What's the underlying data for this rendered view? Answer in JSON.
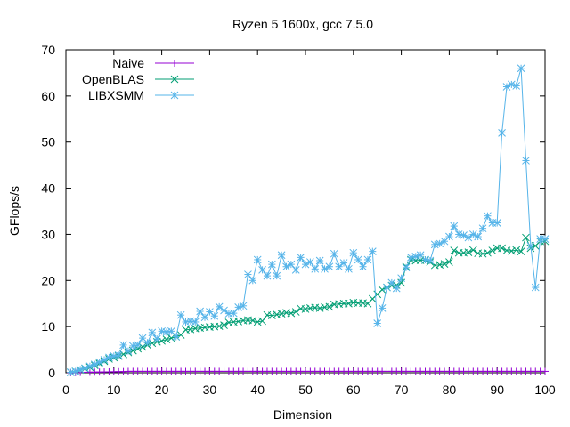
{
  "chart_data": {
    "type": "line",
    "title": "Ryzen 5 1600x, gcc 7.5.0",
    "xlabel": "Dimension",
    "ylabel": "GFlops/s",
    "xlim": [
      0,
      100
    ],
    "ylim": [
      0,
      70
    ],
    "xticks": [
      0,
      10,
      20,
      30,
      40,
      50,
      60,
      70,
      80,
      90,
      100
    ],
    "yticks": [
      0,
      10,
      20,
      30,
      40,
      50,
      60,
      70
    ],
    "grid": false,
    "legend_position": "top-left",
    "series": [
      {
        "name": "Naive",
        "color": "#9400d3",
        "marker": "plus",
        "x": [
          1,
          2,
          3,
          4,
          5,
          6,
          7,
          8,
          9,
          10,
          11,
          12,
          13,
          14,
          15,
          16,
          17,
          18,
          19,
          20,
          21,
          22,
          23,
          24,
          25,
          26,
          27,
          28,
          29,
          30,
          31,
          32,
          33,
          34,
          35,
          36,
          37,
          38,
          39,
          40,
          41,
          42,
          43,
          44,
          45,
          46,
          47,
          48,
          49,
          50,
          51,
          52,
          53,
          54,
          55,
          56,
          57,
          58,
          59,
          60,
          61,
          62,
          63,
          64,
          65,
          66,
          67,
          68,
          69,
          70,
          71,
          72,
          73,
          74,
          75,
          76,
          77,
          78,
          79,
          80,
          81,
          82,
          83,
          84,
          85,
          86,
          87,
          88,
          89,
          90,
          91,
          92,
          93,
          94,
          95,
          96,
          97,
          98,
          99,
          100
        ],
        "values": [
          0.02,
          0.05,
          0.08,
          0.1,
          0.12,
          0.14,
          0.16,
          0.18,
          0.2,
          0.22,
          0.24,
          0.26,
          0.3,
          0.3,
          0.3,
          0.3,
          0.3,
          0.3,
          0.3,
          0.3,
          0.3,
          0.3,
          0.3,
          0.3,
          0.3,
          0.3,
          0.3,
          0.3,
          0.3,
          0.3,
          0.3,
          0.3,
          0.3,
          0.3,
          0.3,
          0.3,
          0.3,
          0.3,
          0.3,
          0.3,
          0.3,
          0.3,
          0.3,
          0.3,
          0.3,
          0.3,
          0.3,
          0.3,
          0.3,
          0.3,
          0.3,
          0.3,
          0.3,
          0.3,
          0.3,
          0.3,
          0.3,
          0.3,
          0.3,
          0.3,
          0.3,
          0.3,
          0.3,
          0.3,
          0.3,
          0.3,
          0.3,
          0.3,
          0.3,
          0.3,
          0.3,
          0.3,
          0.3,
          0.3,
          0.3,
          0.3,
          0.3,
          0.3,
          0.3,
          0.3,
          0.3,
          0.3,
          0.3,
          0.3,
          0.3,
          0.3,
          0.3,
          0.3,
          0.3,
          0.3,
          0.3,
          0.3,
          0.3,
          0.3,
          0.3,
          0.3,
          0.3,
          0.3,
          0.3,
          0.3
        ]
      },
      {
        "name": "OpenBLAS",
        "color": "#009e73",
        "marker": "cross",
        "x": [
          1,
          2,
          3,
          4,
          5,
          6,
          7,
          8,
          9,
          10,
          11,
          12,
          13,
          14,
          15,
          16,
          17,
          18,
          19,
          20,
          21,
          22,
          23,
          24,
          25,
          26,
          27,
          28,
          29,
          30,
          31,
          32,
          33,
          34,
          35,
          36,
          37,
          38,
          39,
          40,
          41,
          42,
          43,
          44,
          45,
          46,
          47,
          48,
          49,
          50,
          51,
          52,
          53,
          54,
          55,
          56,
          57,
          58,
          59,
          60,
          61,
          62,
          63,
          64,
          65,
          66,
          67,
          68,
          69,
          70,
          71,
          72,
          73,
          74,
          75,
          76,
          77,
          78,
          79,
          80,
          81,
          82,
          83,
          84,
          85,
          86,
          87,
          88,
          89,
          90,
          91,
          92,
          93,
          94,
          95,
          96,
          97,
          98,
          99,
          100
        ],
        "values": [
          0.1,
          0.3,
          0.6,
          0.9,
          1.2,
          1.6,
          2.0,
          2.5,
          3.0,
          3.3,
          3.6,
          4.0,
          4.4,
          4.8,
          5.2,
          5.6,
          6.0,
          6.4,
          6.7,
          6.9,
          7.2,
          7.5,
          7.8,
          8.2,
          9.3,
          9.4,
          9.6,
          9.7,
          9.8,
          9.9,
          10.0,
          10.1,
          10.3,
          10.9,
          11.0,
          11.1,
          11.3,
          11.4,
          11.3,
          11.0,
          11.2,
          12.5,
          12.4,
          12.6,
          12.8,
          13.0,
          12.9,
          13.2,
          13.9,
          13.8,
          14.0,
          14.1,
          14.0,
          14.2,
          14.3,
          14.8,
          14.9,
          15.0,
          15.0,
          15.2,
          15.1,
          15.1,
          15.0,
          16.0,
          17.0,
          18.0,
          18.5,
          18.9,
          19.0,
          19.5,
          23.0,
          24.5,
          24.3,
          24.4,
          24.4,
          24.0,
          23.3,
          23.4,
          23.6,
          24.0,
          26.5,
          26.0,
          26.0,
          26.1,
          26.6,
          25.9,
          25.8,
          26.0,
          26.5,
          27.0,
          27.0,
          26.5,
          26.4,
          26.6,
          26.3,
          29.3,
          27.0,
          27.5,
          28.5,
          28.5
        ]
      },
      {
        "name": "LIBXSMM",
        "color": "#56b4e9",
        "marker": "star",
        "x": [
          1,
          2,
          3,
          4,
          5,
          6,
          7,
          8,
          9,
          10,
          11,
          12,
          13,
          14,
          15,
          16,
          17,
          18,
          19,
          20,
          21,
          22,
          23,
          24,
          25,
          26,
          27,
          28,
          29,
          30,
          31,
          32,
          33,
          34,
          35,
          36,
          37,
          38,
          39,
          40,
          41,
          42,
          43,
          44,
          45,
          46,
          47,
          48,
          49,
          50,
          51,
          52,
          53,
          54,
          55,
          56,
          57,
          58,
          59,
          60,
          61,
          62,
          63,
          64,
          65,
          66,
          67,
          68,
          69,
          70,
          71,
          72,
          73,
          74,
          75,
          76,
          77,
          78,
          79,
          80,
          81,
          82,
          83,
          84,
          85,
          86,
          87,
          88,
          89,
          90,
          91,
          92,
          93,
          94,
          95,
          96,
          97,
          98,
          99,
          100
        ],
        "values": [
          0.1,
          0.3,
          0.7,
          1.0,
          1.4,
          1.8,
          2.3,
          2.8,
          3.3,
          3.6,
          3.8,
          6.0,
          4.7,
          5.8,
          6.0,
          7.5,
          6.5,
          8.7,
          7.3,
          9.0,
          8.8,
          9.0,
          7.8,
          12.5,
          11.0,
          11.2,
          11.0,
          13.3,
          12.0,
          13.2,
          12.3,
          14.3,
          13.5,
          12.8,
          12.9,
          14.2,
          14.5,
          21.3,
          20.0,
          24.5,
          22.3,
          21.0,
          23.5,
          21.0,
          25.5,
          23.0,
          23.5,
          22.3,
          25.0,
          23.5,
          24.0,
          22.5,
          24.3,
          22.5,
          23.0,
          25.8,
          23.0,
          23.8,
          22.5,
          26.0,
          24.5,
          23.0,
          24.5,
          26.3,
          10.7,
          14.0,
          18.5,
          19.5,
          18.3,
          20.5,
          22.8,
          25.0,
          25.2,
          25.5,
          24.5,
          24.3,
          27.8,
          28.0,
          28.5,
          29.5,
          31.8,
          30.0,
          29.8,
          29.3,
          30.0,
          29.5,
          31.3,
          34.0,
          32.5,
          32.5,
          52.0,
          62.0,
          62.5,
          62.2,
          66.0,
          46.0,
          27.5,
          18.5,
          29.0,
          29.0
        ]
      }
    ]
  }
}
